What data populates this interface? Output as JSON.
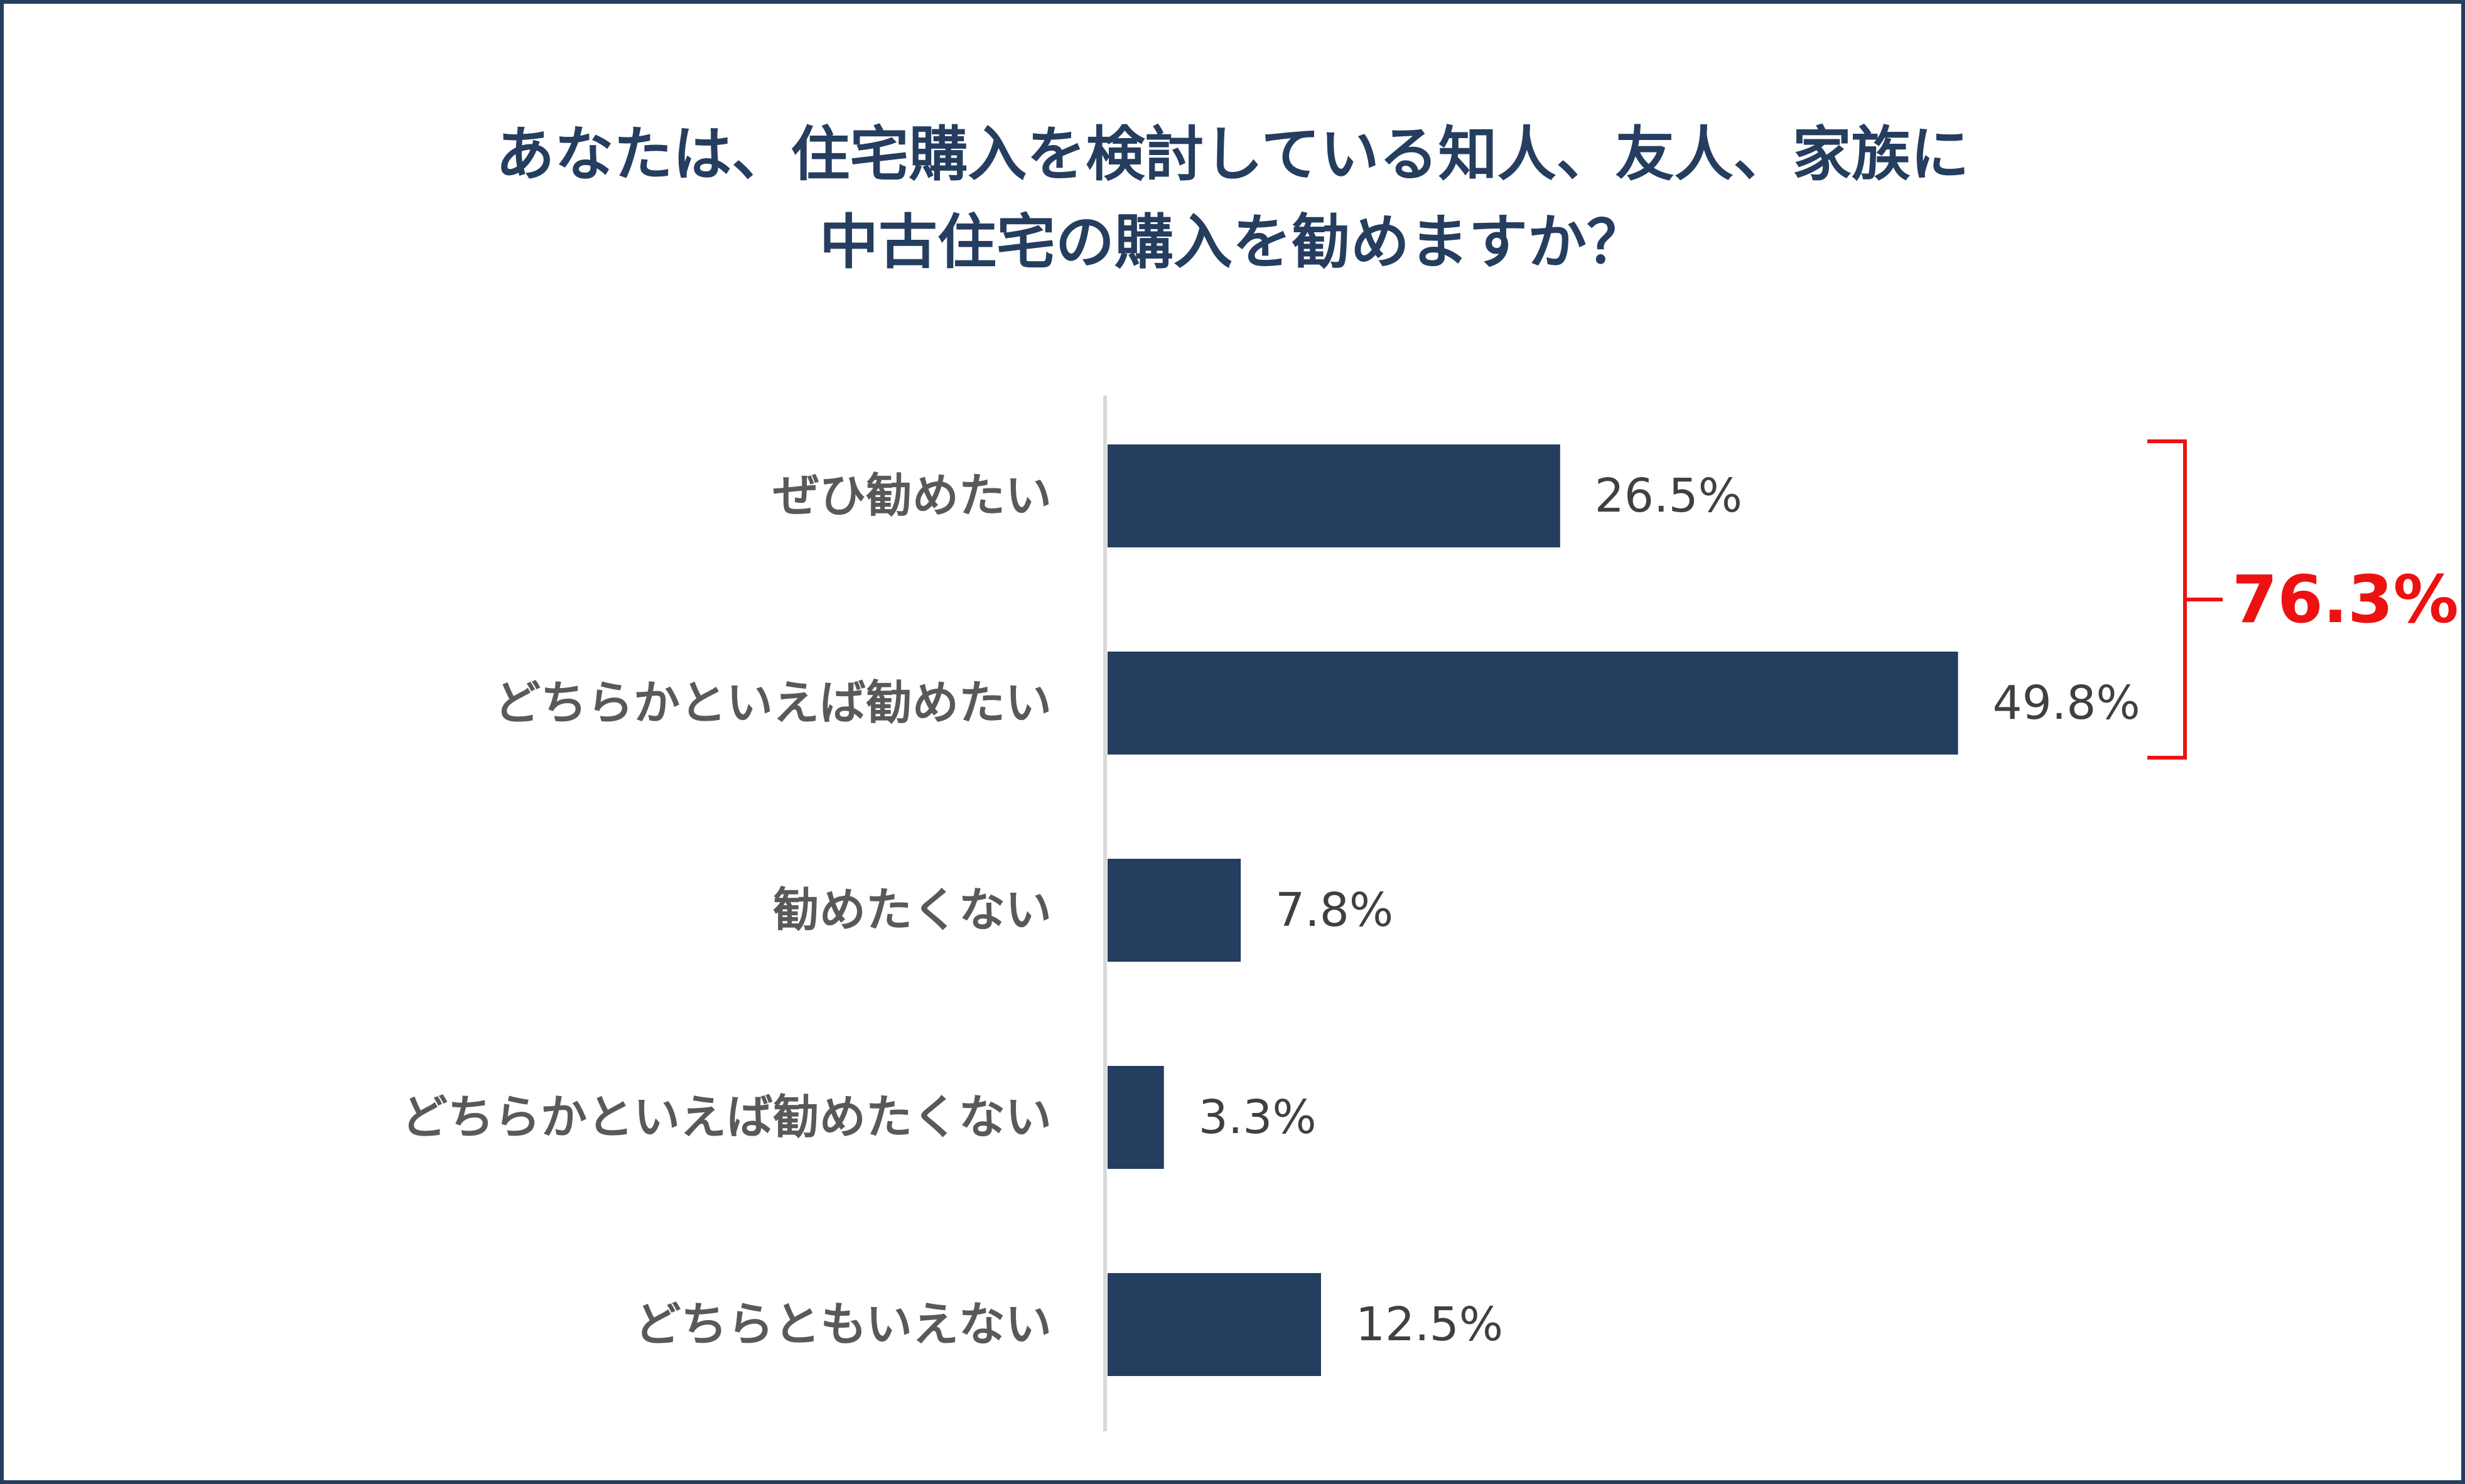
{
  "title": {
    "line1": "あなたは、住宅購入を検討している知人、友人、家族に",
    "line2": "中古住宅の購入を勧めますか？"
  },
  "chart_data": {
    "type": "bar",
    "orientation": "horizontal",
    "title": "あなたは、住宅購入を検討している知人、友人、家族に中古住宅の購入を勧めますか？",
    "categories": [
      "ぜひ勧めたい",
      "どちらかといえば勧めたい",
      "勧めたくない",
      "どちらかといえば勧めたくない",
      "どちらともいえない"
    ],
    "values": [
      26.5,
      49.8,
      7.8,
      3.3,
      12.5
    ],
    "value_labels": [
      "26.5%",
      "49.8%",
      "7.8%",
      "3.3%",
      "12.5%"
    ],
    "unit": "%",
    "xlim": [
      0,
      100
    ],
    "grid": false,
    "legend": "none",
    "bar_color": "#253d5e",
    "annotation": {
      "text": "76.3%",
      "spans_categories": [
        0,
        1
      ],
      "color": "#ee1111"
    }
  }
}
